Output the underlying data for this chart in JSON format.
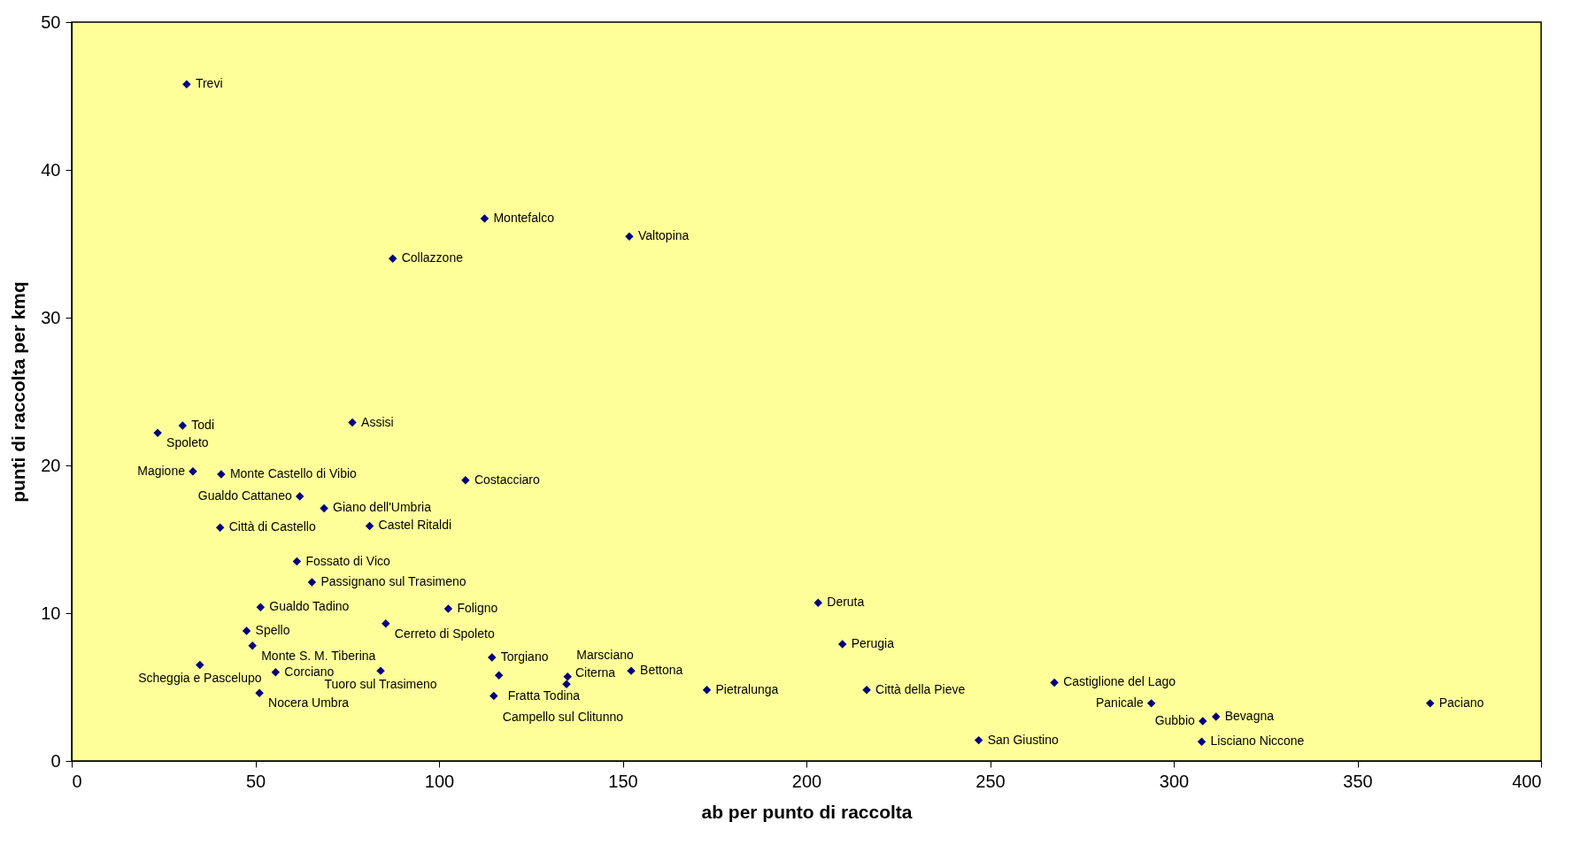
{
  "chart_data": {
    "type": "scatter",
    "xlabel": "ab per punto di raccolta",
    "ylabel": "punti di raccolta per kmq",
    "x": [
      31.3,
      112.4,
      151.8,
      87.4,
      30.2,
      23.4,
      76.4,
      33.0,
      40.7,
      107.2,
      62.1,
      68.7,
      81.1,
      40.4,
      61.3,
      65.4,
      203.2,
      51.4,
      102.5,
      85.5,
      47.6,
      209.8,
      49.2,
      114.4,
      34.9,
      84.1,
      55.5,
      152.3,
      116.3,
      135.0,
      134.7,
      267.5,
      172.9,
      216.4,
      51.1,
      114.9,
      293.9,
      369.8,
      311.5,
      307.9,
      246.9,
      307.6
    ],
    "values": [
      45.8,
      36.7,
      35.5,
      34.0,
      22.7,
      22.2,
      22.9,
      19.6,
      19.4,
      19.0,
      17.9,
      17.1,
      15.9,
      15.8,
      13.5,
      12.1,
      10.7,
      10.4,
      10.3,
      9.3,
      8.8,
      7.9,
      7.8,
      7.0,
      6.5,
      6.1,
      6.0,
      6.1,
      5.8,
      5.7,
      5.2,
      5.3,
      4.8,
      4.8,
      4.6,
      4.4,
      3.9,
      3.9,
      3.0,
      2.7,
      1.4,
      1.3
    ],
    "color": "#000080",
    "marker": "diamond",
    "annotations": [
      {
        "text": "Trevi",
        "x": 31.3,
        "y": 45.8
      },
      {
        "text": "Montefalco",
        "x": 112.4,
        "y": 36.7
      },
      {
        "text": "Valtopina",
        "x": 151.8,
        "y": 35.5
      },
      {
        "text": "Collazzone",
        "x": 87.4,
        "y": 34.0
      },
      {
        "text": "Todi",
        "x": 30.2,
        "y": 22.7
      },
      {
        "text": "Spoleto",
        "x": 23.4,
        "y": 22.2
      },
      {
        "text": "Assisi",
        "x": 76.4,
        "y": 22.9
      },
      {
        "text": "Magione",
        "x": 33.0,
        "y": 19.6
      },
      {
        "text": "Monte Castello di Vibio",
        "x": 40.7,
        "y": 19.4
      },
      {
        "text": "Costacciaro",
        "x": 107.2,
        "y": 19.0
      },
      {
        "text": "Gualdo Cattaneo",
        "x": 62.1,
        "y": 17.9
      },
      {
        "text": "Giano dell'Umbria",
        "x": 68.7,
        "y": 17.1
      },
      {
        "text": "Castel Ritaldi",
        "x": 81.1,
        "y": 15.9
      },
      {
        "text": "Città di Castello",
        "x": 40.4,
        "y": 15.8
      },
      {
        "text": "Fossato di Vico",
        "x": 61.3,
        "y": 13.5
      },
      {
        "text": "Passignano sul Trasimeno",
        "x": 65.4,
        "y": 12.1
      },
      {
        "text": "Deruta",
        "x": 203.2,
        "y": 10.7
      },
      {
        "text": "Gualdo Tadino",
        "x": 51.4,
        "y": 10.4
      },
      {
        "text": "Foligno",
        "x": 102.5,
        "y": 10.3
      },
      {
        "text": "Cerreto di Spoleto",
        "x": 85.5,
        "y": 9.3
      },
      {
        "text": "Spello",
        "x": 47.6,
        "y": 8.8
      },
      {
        "text": "Perugia",
        "x": 209.8,
        "y": 7.9
      },
      {
        "text": "Monte S. M. Tiberina",
        "x": 49.2,
        "y": 7.8
      },
      {
        "text": "Torgiano",
        "x": 114.4,
        "y": 7.0
      },
      {
        "text": "Scheggia e Pascelupo",
        "x": 34.9,
        "y": 6.5
      },
      {
        "text": "Tuoro sul Trasimeno",
        "x": 84.1,
        "y": 6.1
      },
      {
        "text": "Corciano",
        "x": 55.5,
        "y": 6.0
      },
      {
        "text": "Bettona",
        "x": 152.3,
        "y": 6.1
      },
      {
        "text": "Fratta Todina",
        "x": 116.3,
        "y": 5.8
      },
      {
        "text": "Marsciano",
        "x": 135.0,
        "y": 5.7
      },
      {
        "text": "Citerna",
        "x": 134.7,
        "y": 5.2
      },
      {
        "text": "Castiglione del Lago",
        "x": 267.5,
        "y": 5.3
      },
      {
        "text": "Pietralunga",
        "x": 172.9,
        "y": 4.8
      },
      {
        "text": "Città della Pieve",
        "x": 216.4,
        "y": 4.8
      },
      {
        "text": "Nocera Umbra",
        "x": 51.1,
        "y": 4.6
      },
      {
        "text": "Campello sul Clitunno",
        "x": 114.9,
        "y": 4.4
      },
      {
        "text": "Panicale",
        "x": 293.9,
        "y": 3.9
      },
      {
        "text": "Paciano",
        "x": 369.8,
        "y": 3.9
      },
      {
        "text": "Bevagna",
        "x": 311.5,
        "y": 3.0
      },
      {
        "text": "Gubbio",
        "x": 307.9,
        "y": 2.7
      },
      {
        "text": "San Giustino",
        "x": 246.9,
        "y": 1.4
      },
      {
        "text": "Lisciano Niccone",
        "x": 307.6,
        "y": 1.3
      }
    ],
    "xlim": [
      0,
      400
    ],
    "xticks": [
      0,
      50,
      100,
      150,
      200,
      250,
      300,
      350,
      400
    ],
    "ylim": [
      0,
      50
    ],
    "yticks": [
      0,
      10,
      20,
      30,
      40,
      50
    ],
    "grid": false
  }
}
